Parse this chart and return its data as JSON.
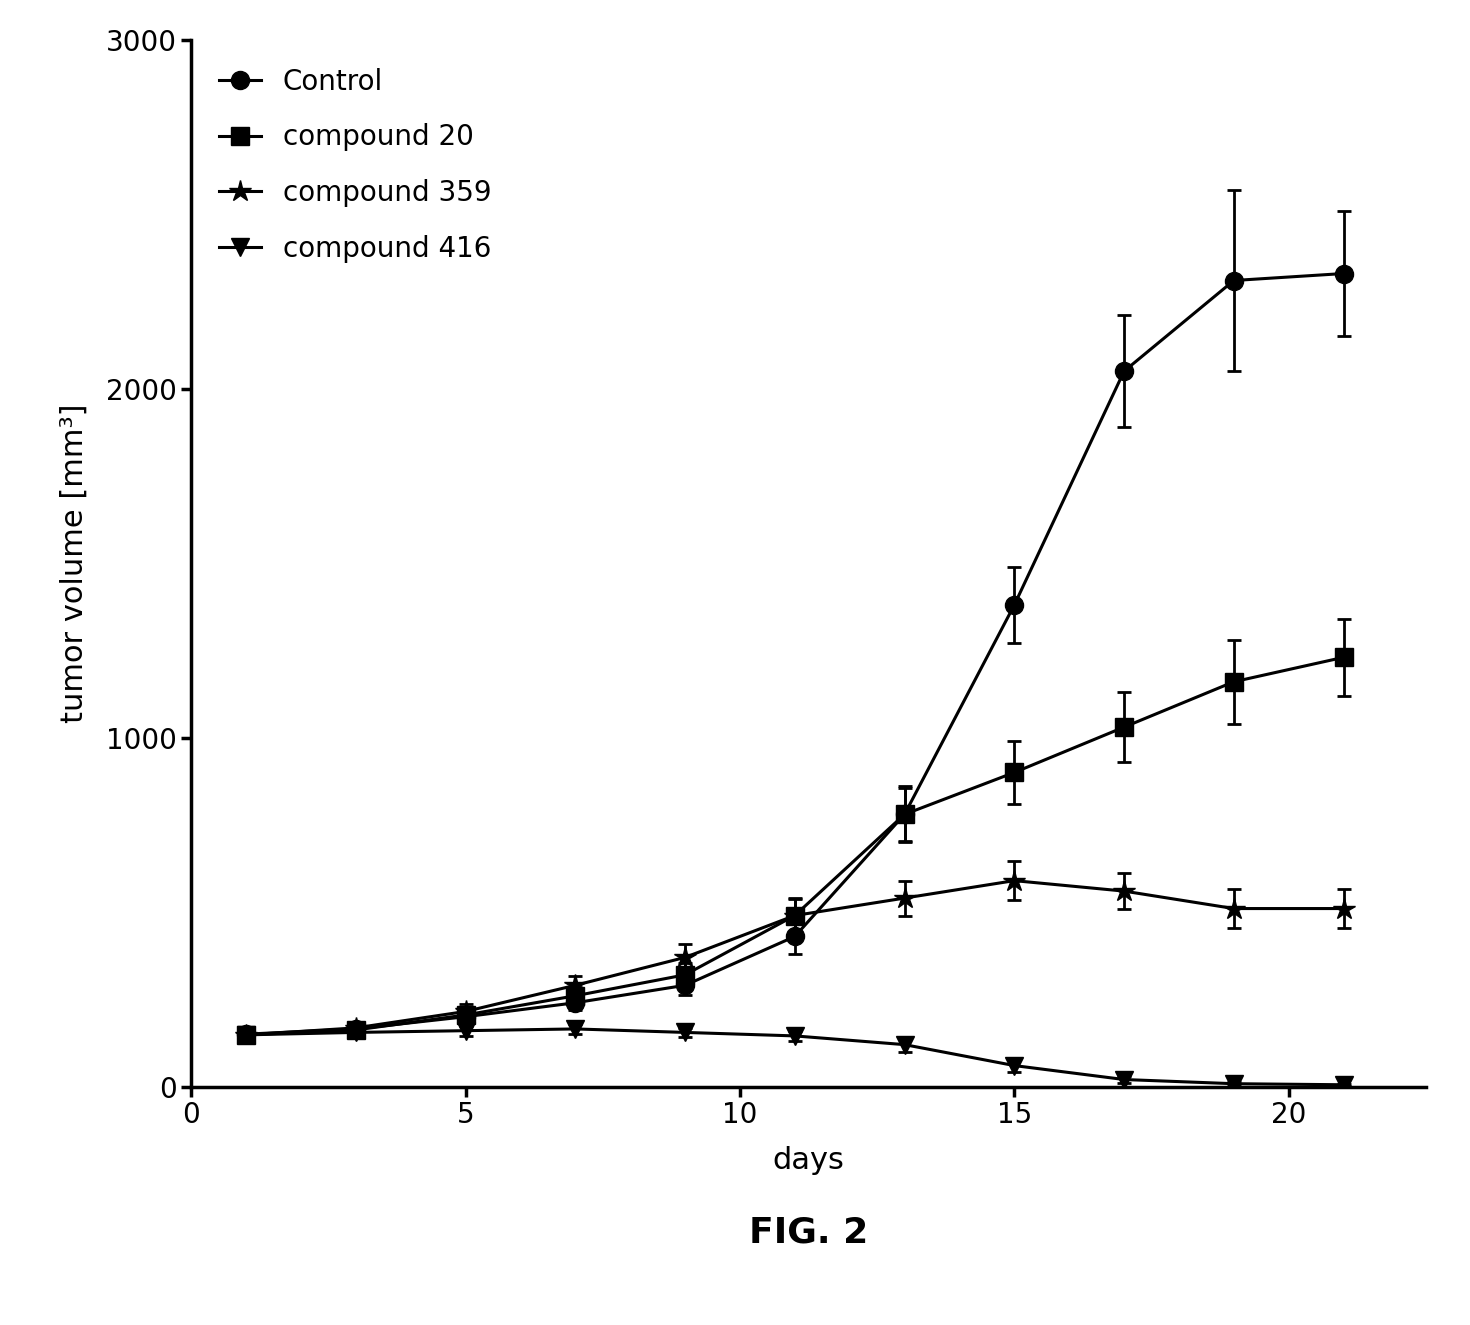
{
  "title": "FIG. 2",
  "xlabel": "days",
  "ylabel": "tumor volume [mm³]",
  "xlim": [
    0,
    22.5
  ],
  "ylim": [
    0,
    3000
  ],
  "yticks": [
    0,
    1000,
    2000,
    3000
  ],
  "xticks": [
    0,
    5,
    10,
    15,
    20
  ],
  "series": [
    {
      "label": "Control",
      "marker": "o",
      "x": [
        1,
        3,
        5,
        7,
        9,
        11,
        13,
        15,
        17,
        19,
        21
      ],
      "y": [
        150,
        165,
        200,
        240,
        290,
        430,
        780,
        1380,
        2050,
        2310,
        2330
      ],
      "yerr": [
        12,
        15,
        18,
        22,
        28,
        50,
        80,
        110,
        160,
        260,
        180
      ]
    },
    {
      "label": "compound 20",
      "marker": "s",
      "x": [
        1,
        3,
        5,
        7,
        9,
        11,
        13,
        15,
        17,
        19,
        21
      ],
      "y": [
        148,
        162,
        205,
        260,
        320,
        490,
        780,
        900,
        1030,
        1160,
        1230
      ],
      "yerr": [
        12,
        15,
        20,
        25,
        35,
        50,
        75,
        90,
        100,
        120,
        110
      ]
    },
    {
      "label": "compound 359",
      "marker": "*",
      "x": [
        1,
        3,
        5,
        7,
        9,
        11,
        13,
        15,
        17,
        19,
        21
      ],
      "y": [
        148,
        168,
        215,
        290,
        370,
        490,
        540,
        590,
        560,
        510,
        510
      ],
      "yerr": [
        12,
        18,
        22,
        28,
        38,
        48,
        50,
        55,
        52,
        55,
        55
      ]
    },
    {
      "label": "compound 416",
      "marker": "v",
      "x": [
        1,
        3,
        5,
        7,
        9,
        11,
        13,
        15,
        17,
        19,
        21
      ],
      "y": [
        148,
        155,
        160,
        165,
        155,
        145,
        120,
        60,
        20,
        8,
        5
      ],
      "yerr": [
        12,
        14,
        14,
        15,
        14,
        15,
        20,
        18,
        10,
        5,
        3
      ]
    }
  ],
  "line_color": "#000000",
  "marker_color": "#000000",
  "marker_size": 10,
  "star_marker_size": 16,
  "line_width": 2.2,
  "capsize": 5,
  "elinewidth": 2,
  "background_color": "#ffffff",
  "legend_fontsize": 20,
  "axis_label_fontsize": 22,
  "tick_fontsize": 20,
  "title_fontsize": 26,
  "title_fontweight": "bold"
}
